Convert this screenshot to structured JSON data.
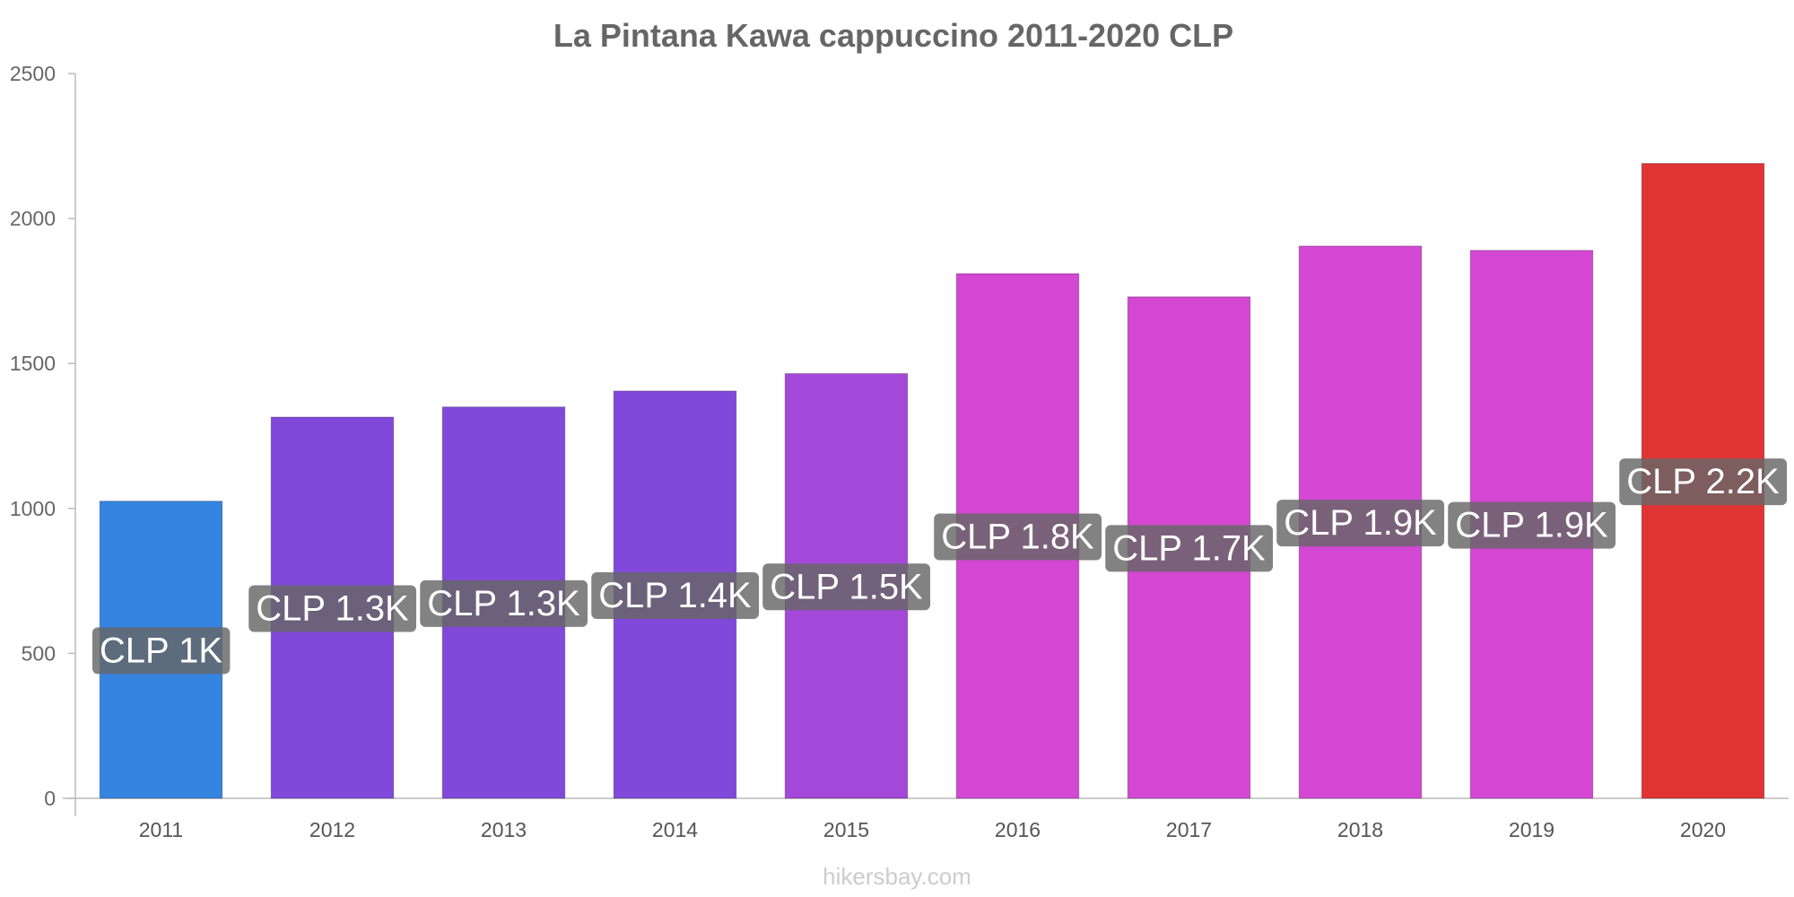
{
  "chart_data": {
    "type": "bar",
    "title": "La Pintana Kawa cappuccino 2011-2020 CLP",
    "xlabel": "",
    "ylabel": "",
    "ylim": [
      0,
      2500
    ],
    "yticks": [
      0,
      500,
      1000,
      1500,
      2000,
      2500
    ],
    "grid": false,
    "categories": [
      "2011",
      "2012",
      "2013",
      "2014",
      "2015",
      "2016",
      "2017",
      "2018",
      "2019",
      "2020"
    ],
    "values": [
      1025,
      1315,
      1350,
      1405,
      1465,
      1810,
      1730,
      1905,
      1890,
      2190
    ],
    "data_labels": [
      "CLP 1K",
      "CLP 1.3K",
      "CLP 1.3K",
      "CLP 1.4K",
      "CLP 1.5K",
      "CLP 1.8K",
      "CLP 1.7K",
      "CLP 1.9K",
      "CLP 1.9K",
      "CLP 2.2K"
    ],
    "colors": [
      "#3584e0",
      "#8049d9",
      "#8049d9",
      "#8049d9",
      "#a448d9",
      "#d347d2",
      "#d347d2",
      "#d347d2",
      "#d347d2",
      "#e03434"
    ],
    "label_bg": "#666666"
  },
  "watermark": "hikersbay.com"
}
